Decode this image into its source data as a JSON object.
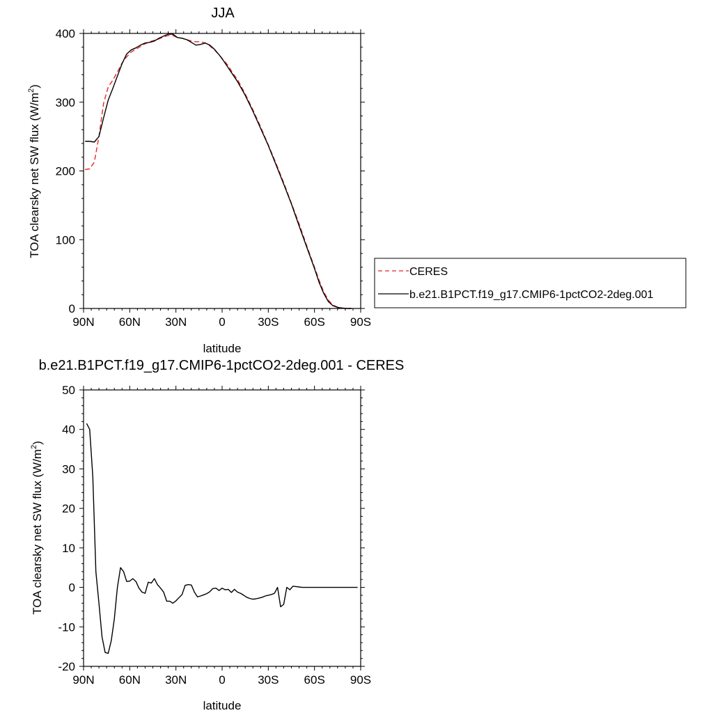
{
  "chart_data": [
    {
      "type": "line",
      "title": "JJA",
      "xlabel": "latitude",
      "ylabel": "TOA clearsky net SW flux (W/m",
      "ylabel_sup": "2",
      "ylabel_close": ")",
      "xlim": [
        90,
        -90
      ],
      "ylim": [
        0,
        400
      ],
      "xticks": [
        90,
        60,
        30,
        0,
        -30,
        -60,
        -90
      ],
      "xtick_labels": [
        "90N",
        "60N",
        "30N",
        "0",
        "30S",
        "60S",
        "90S"
      ],
      "yticks": [
        0,
        100,
        200,
        300,
        400
      ],
      "ytick_labels": [
        "0",
        "100",
        "200",
        "300",
        "400"
      ],
      "legend_position": "right",
      "series": [
        {
          "name": "CERES",
          "color": "#e8232a",
          "dash": true,
          "x": [
            89,
            86,
            83,
            80,
            77,
            74,
            71,
            68,
            65,
            62,
            59,
            56,
            53,
            50,
            47,
            44,
            41,
            38,
            35,
            32,
            29,
            26,
            23,
            20,
            17,
            14,
            11,
            8,
            5,
            2,
            -1,
            -4,
            -7,
            -10,
            -15,
            -20,
            -25,
            -30,
            -35,
            -40,
            -45,
            -50,
            -55,
            -60,
            -63,
            -66,
            -69,
            -72,
            -75,
            -78,
            -81,
            -84
          ],
          "y": [
            202,
            203,
            213,
            250,
            298,
            322,
            332,
            344,
            357,
            366,
            373,
            377,
            381,
            385,
            388,
            390,
            392,
            395,
            397,
            397,
            394,
            393,
            391,
            389,
            388,
            388,
            386,
            382,
            376,
            369,
            361,
            353,
            342,
            333,
            312,
            289,
            264,
            238,
            211,
            183,
            153,
            123,
            91,
            60,
            41,
            24,
            12,
            5,
            2,
            0.5,
            0,
            0
          ]
        },
        {
          "name": "b.e21.B1PCT.f19_g17.CMIP6-1pctCO2-2deg.001",
          "color": "#000000",
          "dash": false,
          "x": [
            89,
            86,
            83,
            80,
            77,
            74,
            71,
            68,
            65,
            62,
            59,
            56,
            53,
            50,
            47,
            44,
            41,
            38,
            35,
            32,
            29,
            26,
            23,
            20,
            17,
            14,
            11,
            8,
            5,
            2,
            -1,
            -4,
            -7,
            -10,
            -15,
            -20,
            -25,
            -30,
            -35,
            -40,
            -45,
            -50,
            -55,
            -60,
            -63,
            -66,
            -69,
            -72,
            -75,
            -78,
            -81,
            -84
          ],
          "y": [
            243,
            243,
            242,
            250,
            277,
            303,
            320,
            338,
            356,
            370,
            376,
            379,
            383,
            386,
            387,
            389,
            393,
            396,
            399,
            399,
            394,
            393,
            391,
            387,
            383,
            384,
            386,
            383,
            377,
            369,
            360,
            350,
            340,
            330,
            310,
            287,
            262,
            237,
            209,
            181,
            152,
            120,
            89,
            58,
            38,
            22,
            10,
            4,
            1.5,
            0.5,
            0,
            0
          ]
        }
      ]
    },
    {
      "type": "line",
      "title": "b.e21.B1PCT.f19_g17.CMIP6-1pctCO2-2deg.001 - CERES",
      "xlabel": "latitude",
      "ylabel": "TOA clearsky net SW flux (W/m",
      "ylabel_sup": "2",
      "ylabel_close": ")",
      "xlim": [
        90,
        -90
      ],
      "ylim": [
        -20,
        50
      ],
      "xticks": [
        90,
        60,
        30,
        0,
        -30,
        -60,
        -90
      ],
      "xtick_labels": [
        "90N",
        "60N",
        "30N",
        "0",
        "30S",
        "60S",
        "90S"
      ],
      "yticks": [
        -20,
        -10,
        0,
        10,
        20,
        30,
        40,
        50
      ],
      "ytick_labels": [
        "-20",
        "-10",
        "0",
        "10",
        "20",
        "30",
        "40",
        "50"
      ],
      "series": [
        {
          "color": "#000000",
          "dash": false,
          "x": [
            88,
            86,
            84,
            82,
            80,
            78,
            76,
            74,
            72,
            70,
            68,
            66,
            64,
            62,
            60,
            58,
            56,
            54,
            52,
            50,
            48,
            46,
            44,
            42,
            40,
            38,
            36,
            34,
            32,
            30,
            28,
            26,
            24,
            22,
            20,
            18,
            16,
            14,
            12,
            10,
            8,
            6,
            4,
            2,
            0,
            -2,
            -4,
            -6,
            -8,
            -10,
            -12,
            -14,
            -16,
            -18,
            -20,
            -22,
            -24,
            -26,
            -28,
            -30,
            -32,
            -34,
            -36,
            -38,
            -40,
            -42,
            -44,
            -46,
            -48,
            -50,
            -52,
            -54,
            -56,
            -58,
            -60,
            -62,
            -64,
            -66,
            -68,
            -70,
            -72,
            -74,
            -76,
            -78,
            -80,
            -82,
            -84,
            -86,
            -88
          ],
          "y": [
            41.5,
            40,
            28,
            4,
            -4,
            -12.5,
            -16.5,
            -16.7,
            -13.5,
            -8,
            0,
            5,
            4,
            1.5,
            1.6,
            2.2,
            1.5,
            -0.2,
            -1.2,
            -1.5,
            1.3,
            1.1,
            2.2,
            0.7,
            -0.2,
            -1.2,
            -3.5,
            -3.5,
            -4,
            -3.4,
            -2.6,
            -1.8,
            0.5,
            0.7,
            0.6,
            -1.2,
            -2.4,
            -2.2,
            -1.9,
            -1.6,
            -1.1,
            -0.3,
            -0.2,
            -0.8,
            -0.2,
            -0.6,
            -0.5,
            -1.3,
            -0.5,
            -1.2,
            -1.5,
            -2,
            -2.5,
            -2.8,
            -3,
            -2.9,
            -2.7,
            -2.5,
            -2.2,
            -2,
            -1.8,
            -1.5,
            0,
            -4.9,
            -4.3,
            0,
            -0.6,
            0.3,
            0.2,
            0.1,
            0,
            0,
            0,
            0,
            0,
            0,
            0,
            0,
            0,
            0,
            0,
            0,
            0,
            0,
            0,
            0,
            0,
            0,
            0
          ]
        }
      ]
    }
  ]
}
